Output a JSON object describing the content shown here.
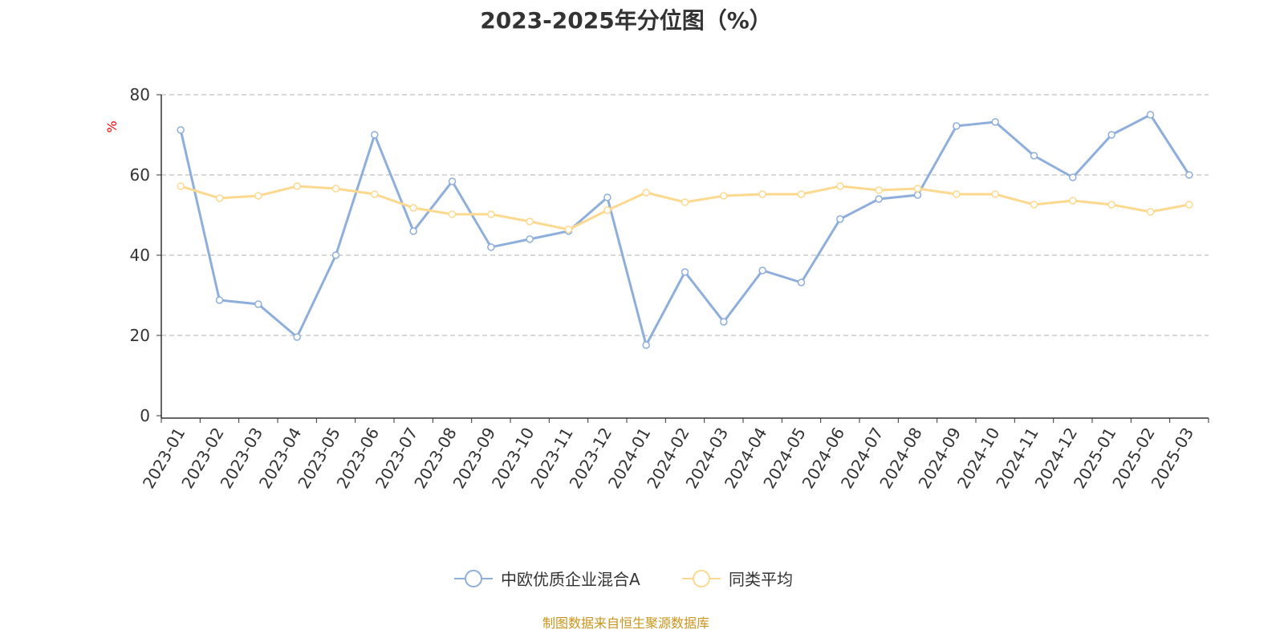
{
  "chart_data": {
    "type": "line",
    "title": "2023-2025年分位图（%）",
    "ylabel": "%",
    "xlabel": "",
    "ylim": [
      0,
      80
    ],
    "yticks": [
      0,
      20,
      40,
      60,
      80
    ],
    "grid": true,
    "legend_position": "bottom",
    "categories": [
      "2023-01",
      "2023-02",
      "2023-03",
      "2023-04",
      "2023-05",
      "2023-06",
      "2023-07",
      "2023-08",
      "2023-09",
      "2023-10",
      "2023-11",
      "2023-12",
      "2024-01",
      "2024-02",
      "2024-03",
      "2024-04",
      "2024-05",
      "2024-06",
      "2024-07",
      "2024-08",
      "2024-09",
      "2024-10",
      "2024-11",
      "2024-12",
      "2025-01",
      "2025-02",
      "2025-03"
    ],
    "series": [
      {
        "name": "中欧优质企业混合A",
        "color": "#8eaedb",
        "values": [
          71.2,
          28.8,
          27.8,
          19.6,
          40,
          70,
          46,
          58.4,
          42,
          44,
          46,
          54.4,
          17.6,
          35.8,
          23.4,
          36.2,
          33.2,
          49,
          54,
          55,
          72.2,
          73.2,
          64.8,
          59.4,
          70,
          75,
          60
        ]
      },
      {
        "name": "同类平均",
        "color": "#fcd98f",
        "values": [
          57.2,
          54.2,
          54.8,
          57.2,
          56.6,
          55.2,
          51.8,
          50.2,
          50.2,
          48.4,
          46.4,
          51.2,
          55.6,
          53.2,
          54.8,
          55.2,
          55.2,
          57.2,
          56.2,
          56.6,
          55.2,
          55.2,
          52.6,
          53.6,
          52.6,
          50.8,
          52.6
        ]
      }
    ]
  },
  "footer": "制图数据来自恒生聚源数据库"
}
